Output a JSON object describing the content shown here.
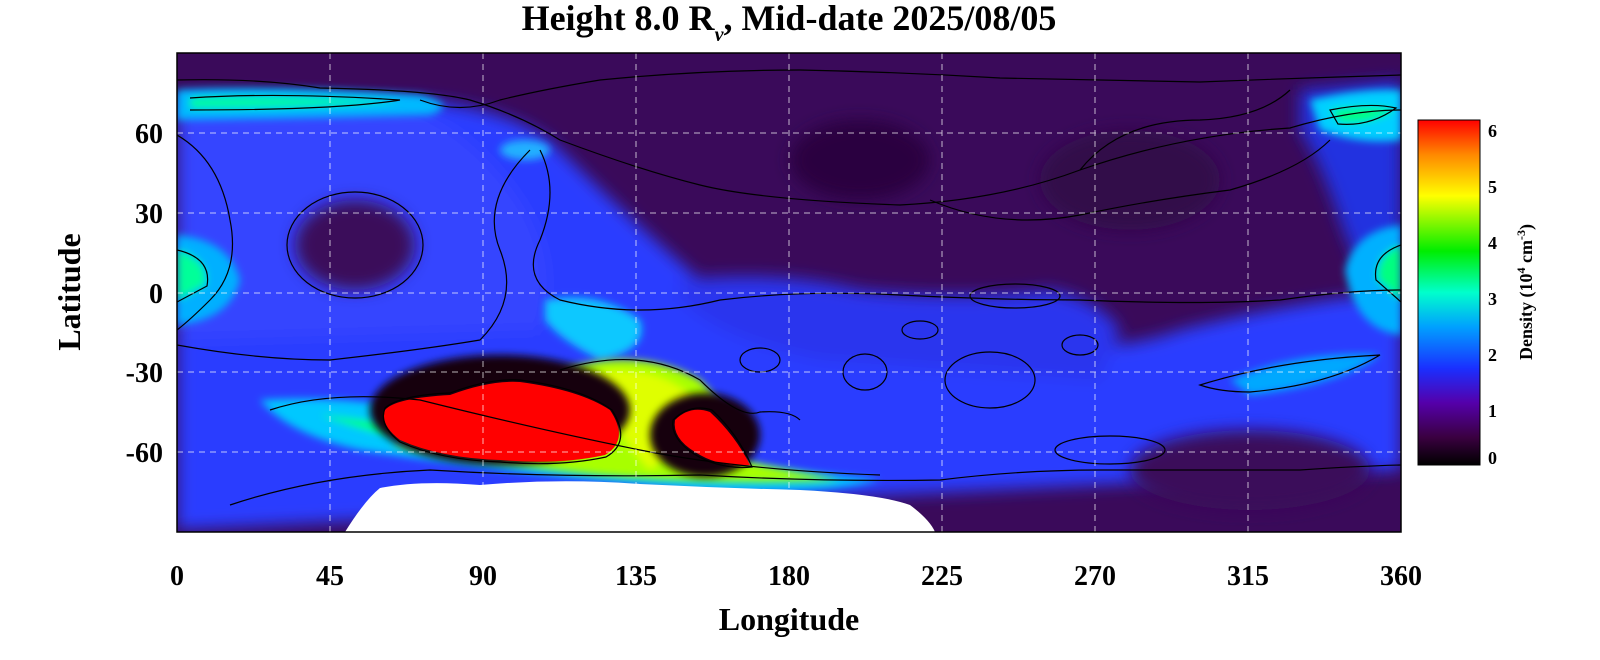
{
  "chart_data": {
    "type": "heatmap",
    "title_prefix": "Height 8.0 R",
    "title_subscript": "ν",
    "title_suffix": ", Mid-date 2025/08/05",
    "xlabel": "Longitude",
    "ylabel": "Latitude",
    "xlim": [
      0,
      360
    ],
    "ylim": [
      -90,
      90
    ],
    "x_ticks": [
      0,
      45,
      90,
      135,
      180,
      225,
      270,
      315,
      360
    ],
    "y_ticks": [
      60,
      30,
      0,
      -30,
      -60
    ],
    "x_tick_labels": [
      "0",
      "45",
      "90",
      "135",
      "180",
      "225",
      "270",
      "315",
      "360"
    ],
    "y_tick_labels": [
      "60",
      "30",
      "0",
      "-30",
      "-60"
    ],
    "grid": true,
    "colorbar": {
      "label_prefix": "Density (10",
      "label_exp1": "4",
      "label_mid": " cm",
      "label_exp2": "-3",
      "label_suffix": ")",
      "range": [
        0,
        6
      ],
      "ticks": [
        0,
        1,
        2,
        3,
        4,
        5,
        6
      ],
      "tick_labels": [
        "0",
        "1",
        "2",
        "3",
        "4",
        "5",
        "6"
      ],
      "colors": [
        "#000000",
        "#3a0040",
        "#5500aa",
        "#1a2fff",
        "#00a0ff",
        "#00ffcc",
        "#00ee00",
        "#ffff00",
        "#ff8800",
        "#ff0000"
      ]
    },
    "regions": [
      {
        "name": "background",
        "value": 0.7
      },
      {
        "name": "blue-belt-west",
        "value": 1.8
      },
      {
        "name": "high-north-west",
        "value": 2.8
      },
      {
        "name": "high-north-east",
        "value": 3.0
      },
      {
        "name": "equator-east-edge",
        "value": 2.9
      },
      {
        "name": "equator-west-edge",
        "value": 2.9
      },
      {
        "name": "low-south-band",
        "value": 3.5
      },
      {
        "name": "peak-core-main",
        "value": 6.0
      },
      {
        "name": "peak-core-secondary",
        "value": 6.0
      },
      {
        "name": "south-yellow-band",
        "value": 4.8
      },
      {
        "name": "no-data-south-pole",
        "value": null
      }
    ]
  }
}
